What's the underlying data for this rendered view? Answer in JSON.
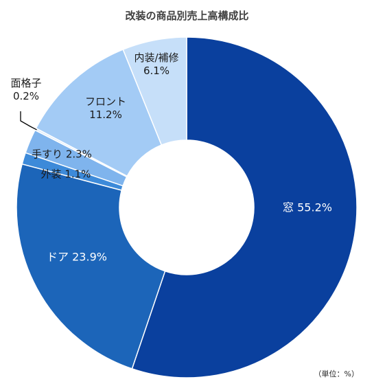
{
  "chart_data": {
    "type": "pie",
    "title": "改装の商品別売上高構成比",
    "unit_note": "（単位：%）",
    "slices": [
      {
        "category": "窓",
        "value": 55.2,
        "label": "窓 55.2%",
        "color": "#0a409e"
      },
      {
        "category": "ドア",
        "value": 23.9,
        "label": "ドア 23.9%",
        "color": "#1c65b9"
      },
      {
        "category": "外装",
        "value": 1.1,
        "label": "外装 1.1%",
        "color": "#3d8ad9"
      },
      {
        "category": "手すり",
        "value": 2.3,
        "label": "手すり 2.3%",
        "color": "#7fb4ed"
      },
      {
        "category": "面格子",
        "value": 0.2,
        "label": "面格子\n0.2%",
        "color": "#e0ecf9"
      },
      {
        "category": "フロント",
        "value": 11.2,
        "label": "フロント\n11.2%",
        "color": "#a3cbf5"
      },
      {
        "category": "内装/補修",
        "value": 6.1,
        "label": "内装/補修\n6.1%",
        "color": "#c6dff9"
      }
    ]
  }
}
